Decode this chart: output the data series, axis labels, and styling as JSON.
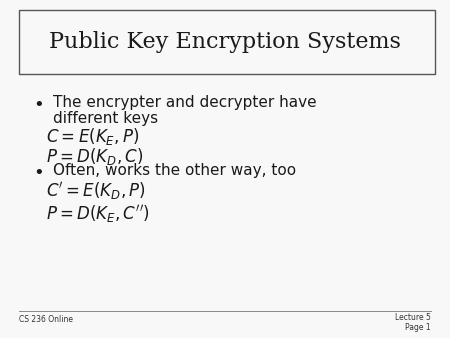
{
  "bg_color": "#e8e8e8",
  "slide_bg": "#f8f8f8",
  "title": "Public Key Encryption Systems",
  "footer_left": "CS 236 Online",
  "footer_right": "Lecture 5\nPage 1",
  "title_fontsize": 16,
  "body_fontsize": 11,
  "math_fontsize": 11
}
